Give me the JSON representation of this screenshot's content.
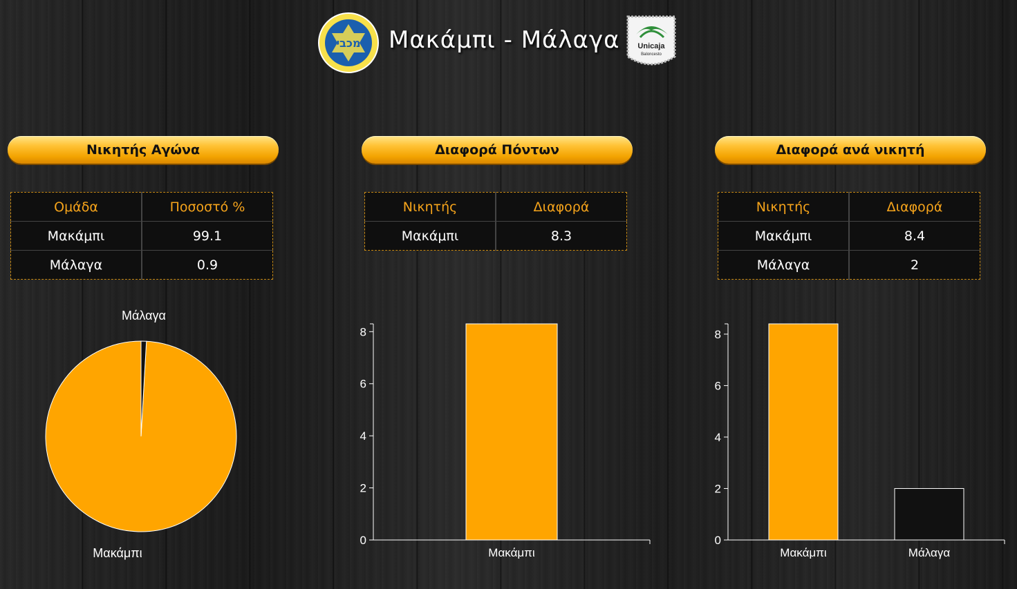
{
  "header": {
    "title": "Μακάμπι - Μάλαγα",
    "left_logo_text": "מכבי",
    "right_logo_text": [
      "Unicaja",
      "Baloncesto"
    ]
  },
  "sections": [
    {
      "title": "Νικητής Αγώνα",
      "table": {
        "headers": [
          "Ομάδα",
          "Ποσοστό %"
        ],
        "rows": [
          [
            "Μακάμπι",
            "99.1"
          ],
          [
            "Μάλαγα",
            "0.9"
          ]
        ]
      }
    },
    {
      "title": "Διαφορά Πόντων",
      "table": {
        "headers": [
          "Νικητής",
          "Διαφορά"
        ],
        "rows": [
          [
            "Μακάμπι",
            "8.3"
          ]
        ]
      }
    },
    {
      "title": "Διαφορά ανά νικητή",
      "table": {
        "headers": [
          "Νικητής",
          "Διαφορά"
        ],
        "rows": [
          [
            "Μακάμπι",
            "8.4"
          ],
          [
            "Μάλαγα",
            "2"
          ]
        ]
      }
    }
  ],
  "colors": {
    "accent": "#ffa500",
    "header_text": "#f6a41b",
    "bar_dark": "#111111"
  },
  "chart_data": [
    {
      "type": "pie",
      "labels": [
        "Μακάμπι",
        "Μάλαγα"
      ],
      "values": [
        99.1,
        0.9
      ],
      "colors": [
        "#ffa500",
        "#111111"
      ]
    },
    {
      "type": "bar",
      "categories": [
        "Μακάμπι"
      ],
      "values": [
        8.3
      ],
      "ylim": [
        0,
        8.3
      ],
      "yticks": [
        0,
        2,
        4,
        6,
        8
      ],
      "colors": [
        "#ffa500"
      ]
    },
    {
      "type": "bar",
      "categories": [
        "Μακάμπι",
        "Μάλαγα"
      ],
      "values": [
        8.4,
        2
      ],
      "ylim": [
        0,
        8.4
      ],
      "yticks": [
        0,
        2,
        4,
        6,
        8
      ],
      "colors": [
        "#ffa500",
        "#111111"
      ]
    }
  ]
}
